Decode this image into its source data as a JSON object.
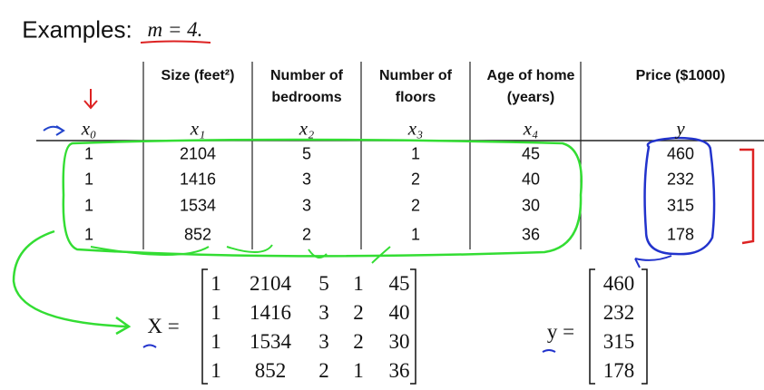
{
  "title": {
    "label": "Examples:",
    "math": "m = 4."
  },
  "table": {
    "header": [
      "Size (feet²)",
      "Number of bedrooms",
      "Number of floors",
      "Age of home (years)",
      "Price ($1000)"
    ],
    "variables": [
      "x₀",
      "x₁",
      "x₂",
      "x₃",
      "x₄",
      "y"
    ],
    "rows": [
      [
        1,
        2104,
        5,
        1,
        45,
        460
      ],
      [
        1,
        1416,
        3,
        2,
        40,
        232
      ],
      [
        1,
        1534,
        3,
        2,
        30,
        315
      ],
      [
        1,
        852,
        2,
        1,
        36,
        178
      ]
    ]
  },
  "matrix": {
    "label": "X =",
    "rows": [
      [
        1,
        2104,
        5,
        1,
        45
      ],
      [
        1,
        1416,
        3,
        2,
        40
      ],
      [
        1,
        1534,
        3,
        2,
        30
      ],
      [
        1,
        852,
        2,
        1,
        36
      ]
    ]
  },
  "vector": {
    "label": "y =",
    "values": [
      460,
      232,
      315,
      178
    ]
  }
}
